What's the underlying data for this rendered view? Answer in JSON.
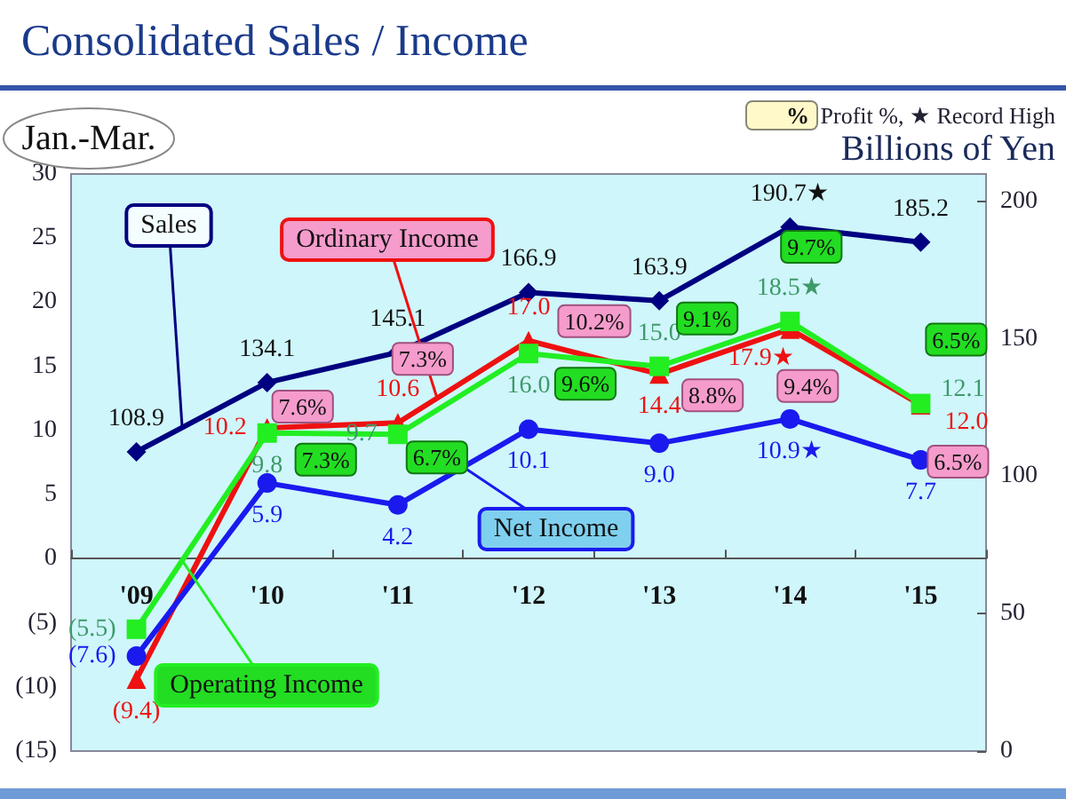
{
  "chart_data": {
    "type": "line",
    "title": "Consolidated Sales / Income",
    "categories": [
      "'09",
      "'10",
      "'11",
      "'12",
      "'13",
      "'14",
      "'15"
    ],
    "series": [
      {
        "name": "Sales",
        "color": "#000080",
        "axis": "y2",
        "marker": "diamond",
        "values": [
          108.9,
          134.1,
          145.1,
          166.9,
          163.9,
          190.7,
          185.2
        ],
        "value_labels": [
          "108.9",
          "134.1",
          "145.1",
          "166.9",
          "163.9",
          "190.7★",
          "185.2"
        ]
      },
      {
        "name": "Ordinary Income",
        "color": "#ee1111",
        "marker": "triangle",
        "values": [
          -9.4,
          10.2,
          10.6,
          17.0,
          14.4,
          17.9,
          12.0
        ],
        "value_labels": [
          "(9.4)",
          "10.2",
          "10.6",
          "17.0",
          "14.4",
          "17.9★",
          "12.0"
        ]
      },
      {
        "name": "Operating Income",
        "color": "#22ee22",
        "marker": "square",
        "values": [
          -5.5,
          9.8,
          9.7,
          16.0,
          15.0,
          18.5,
          12.1
        ],
        "value_labels": [
          "(5.5)",
          "9.8",
          "9.7",
          "16.0",
          "15.0",
          "18.5★",
          "12.1"
        ]
      },
      {
        "name": "Net Income",
        "color": "#1a1aee",
        "marker": "circle",
        "values": [
          -7.6,
          5.9,
          4.2,
          10.1,
          9.0,
          10.9,
          7.7
        ],
        "value_labels": [
          "(7.6)",
          "5.9",
          "4.2",
          "10.1",
          "9.0",
          "10.9★",
          "7.7"
        ]
      }
    ],
    "ylim": [
      -15,
      30
    ],
    "yticks": [
      {
        "value": -15,
        "label": "(15)"
      },
      {
        "value": -10,
        "label": "(10)"
      },
      {
        "value": -5,
        "label": "(5)"
      },
      0,
      5,
      10,
      15,
      20,
      25,
      30
    ],
    "y2lim": [
      0,
      210
    ],
    "y2ticks": [
      0,
      50,
      100,
      150,
      200
    ],
    "annotations": [
      "Jan.-Mar.",
      "%",
      "Profit %, ★ Record High",
      "Billions of Yen",
      {
        "text": "7.6%",
        "x": "'10",
        "y": 10.2
      },
      {
        "text": "7.3%",
        "x": "'11",
        "y": 10.6
      },
      {
        "text": "10.2%",
        "x": "'12",
        "y": 17.0
      },
      {
        "text": "8.8%",
        "x": "'13",
        "y": 14.4
      },
      {
        "text": "9.4%",
        "x": "'14",
        "y": 17.9
      },
      {
        "text": "6.5%",
        "x": "'15",
        "y": 12.0
      },
      {
        "text": "7.3%",
        "x": "'10",
        "y": 9.8
      },
      {
        "text": "6.7%",
        "x": "'11",
        "y": 9.7
      },
      {
        "text": "9.6%",
        "x": "'12",
        "y": 16.0
      },
      {
        "text": "9.1%",
        "x": "'13",
        "y": 15.0
      },
      {
        "text": "9.7%",
        "x": "'14",
        "y": 18.5
      },
      {
        "text": "6.5%",
        "x": "'15",
        "y": 12.1
      }
    ],
    "legend": false,
    "line_style": "solid"
  }
}
